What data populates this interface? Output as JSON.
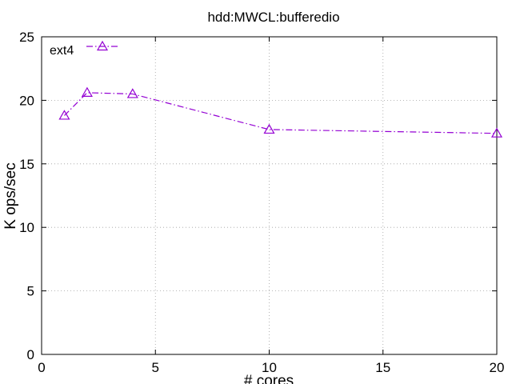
{
  "chart_data": {
    "type": "line",
    "title": "hdd:MWCL:bufferedio",
    "xlabel": "# cores",
    "ylabel": "K ops/sec",
    "xlim": [
      0,
      20
    ],
    "ylim": [
      0,
      25
    ],
    "xticks": [
      0,
      5,
      10,
      15,
      20
    ],
    "yticks": [
      0,
      5,
      10,
      15,
      20,
      25
    ],
    "grid": true,
    "legend_position": "top-left",
    "series": [
      {
        "name": "ext4",
        "color": "#9400d3",
        "line_style": "dash-dot",
        "marker": "open-triangle",
        "x": [
          1,
          2,
          4,
          10,
          20
        ],
        "y": [
          18.8,
          20.6,
          20.5,
          17.7,
          17.4
        ]
      }
    ]
  }
}
